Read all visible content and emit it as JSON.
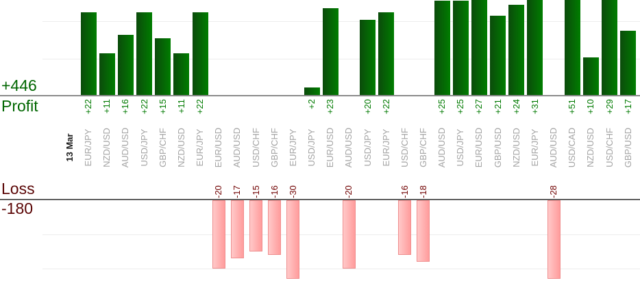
{
  "chart_data": {
    "type": "bar",
    "date_label": "13 Mar",
    "profit": {
      "label": "Profit",
      "total_label": "+446",
      "total": 446,
      "gridline_values": [
        10,
        20
      ]
    },
    "loss": {
      "label": "Loss",
      "total_label": "-180",
      "total": -180,
      "gridline_values": [
        -10,
        -20
      ]
    },
    "trades": [
      {
        "pair": "EUR/JPY",
        "value": 22,
        "label": "+22"
      },
      {
        "pair": "NZD/USD",
        "value": 11,
        "label": "+11"
      },
      {
        "pair": "AUD/USD",
        "value": 16,
        "label": "+16"
      },
      {
        "pair": "USD/JPY",
        "value": 22,
        "label": "+22"
      },
      {
        "pair": "GBP/CHF",
        "value": 15,
        "label": "+15"
      },
      {
        "pair": "NZD/USD",
        "value": 11,
        "label": "+11"
      },
      {
        "pair": "EUR/JPY",
        "value": 22,
        "label": "+22"
      },
      {
        "pair": "EUR/USD",
        "value": -20,
        "label": "-20"
      },
      {
        "pair": "AUD/USD",
        "value": -17,
        "label": "-17"
      },
      {
        "pair": "USD/CHF",
        "value": -15,
        "label": "-15"
      },
      {
        "pair": "GBP/CHF",
        "value": -16,
        "label": "-16"
      },
      {
        "pair": "EUR/JPY",
        "value": -30,
        "label": "-30"
      },
      {
        "pair": "USD/JPY",
        "value": 2,
        "label": "+2"
      },
      {
        "pair": "EUR/USD",
        "value": 23,
        "label": "+23"
      },
      {
        "pair": "AUD/USD",
        "value": -20,
        "label": "-20"
      },
      {
        "pair": "USD/JPY",
        "value": 20,
        "label": "+20"
      },
      {
        "pair": "EUR/JPY",
        "value": 22,
        "label": "+22"
      },
      {
        "pair": "USD/CHF",
        "value": -16,
        "label": "-16"
      },
      {
        "pair": "GBP/CHF",
        "value": -18,
        "label": "-18"
      },
      {
        "pair": "AUD/USD",
        "value": 25,
        "label": "+25"
      },
      {
        "pair": "USD/JPY",
        "value": 25,
        "label": "+25"
      },
      {
        "pair": "EUR/USD",
        "value": 27,
        "label": "+27"
      },
      {
        "pair": "GBP/USD",
        "value": 21,
        "label": "+21"
      },
      {
        "pair": "NZD/USD",
        "value": 24,
        "label": "+24"
      },
      {
        "pair": "EUR/JPY",
        "value": 31,
        "label": "+31"
      },
      {
        "pair": "AUD/USD",
        "value": -28,
        "label": "-28"
      },
      {
        "pair": "USD/CAD",
        "value": 51,
        "label": "+51"
      },
      {
        "pair": "NZD/USD",
        "value": 10,
        "label": "+10"
      },
      {
        "pair": "USD/CHF",
        "value": 29,
        "label": "+29"
      },
      {
        "pair": "GBP/USD",
        "value": 17,
        "label": "+17"
      }
    ]
  },
  "colors": {
    "background": "#ffffff",
    "profit_bar_dark": "#0b4b0b",
    "profit_bar_light": "#007d00",
    "loss_bar_fill_light": "#ffc9c9",
    "loss_bar_fill_dark": "#ff9c9c",
    "loss_bar_border": "#ef8d8d",
    "profit_value_text": "#007a00",
    "loss_value_text": "#700000",
    "profit_axis_text": "#006600",
    "loss_axis_text": "#5a0505",
    "pair_label_text": "#a3a3a3",
    "date_label_text": "#1a1a1a",
    "profit_baseline": "#8a8a8a",
    "loss_baseline": "#606060",
    "gridline": "#ededed"
  }
}
